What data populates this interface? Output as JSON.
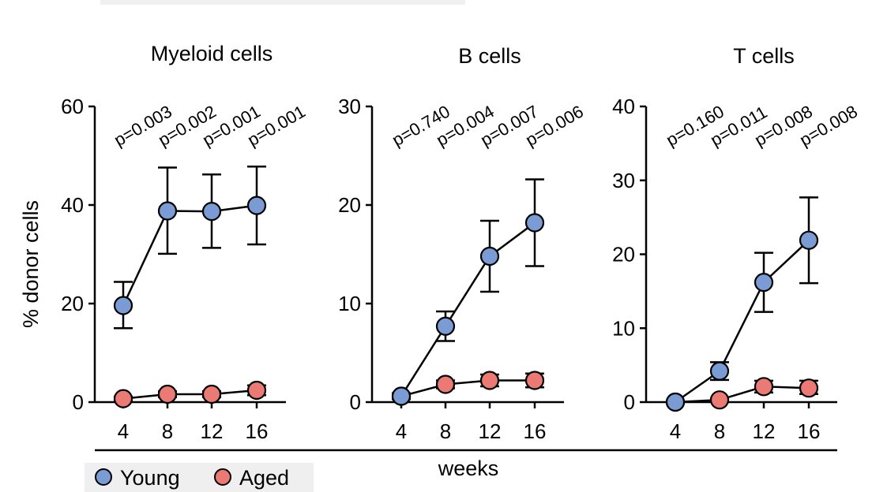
{
  "chart_data": {
    "type": "line",
    "xlabel": "weeks",
    "ylabel": "% donor cells",
    "legend": [
      {
        "name": "Young",
        "color": "#7b9bd4"
      },
      {
        "name": "Aged",
        "color": "#ec7a74"
      }
    ],
    "panels": [
      {
        "title": "Myeloid cells",
        "categories": [
          "4",
          "8",
          "12",
          "16"
        ],
        "ylim": [
          0,
          60
        ],
        "yticks": [
          0,
          20,
          40,
          60
        ],
        "pvalues": [
          "p=0.003",
          "p=0.002",
          "p=0.001",
          "p=0.001"
        ],
        "series": [
          {
            "name": "Young",
            "values": [
              19.6,
              38.8,
              38.7,
              39.9
            ],
            "err_low": [
              15.0,
              30.1,
              31.3,
              32.0
            ],
            "err_high": [
              24.4,
              47.6,
              46.2,
              47.8
            ]
          },
          {
            "name": "Aged",
            "values": [
              0.7,
              1.6,
              1.6,
              2.4
            ],
            "err_low": [
              0.3,
              1.0,
              1.0,
              1.4
            ],
            "err_high": [
              1.1,
              2.2,
              2.2,
              3.4
            ]
          }
        ]
      },
      {
        "title": "B cells",
        "categories": [
          "4",
          "8",
          "12",
          "16"
        ],
        "ylim": [
          0,
          30
        ],
        "yticks": [
          0,
          10,
          20,
          30
        ],
        "pvalues": [
          "p=0.740",
          "p=0.004",
          "p=0.007",
          "p=0.006"
        ],
        "series": [
          {
            "name": "Young",
            "values": [
              0.6,
              7.7,
              14.8,
              18.2
            ],
            "err_low": [
              0.3,
              6.2,
              11.2,
              13.8
            ],
            "err_high": [
              0.9,
              9.2,
              18.4,
              22.6
            ]
          },
          {
            "name": "Aged",
            "values": [
              0.6,
              1.8,
              2.2,
              2.2
            ],
            "err_low": [
              0.3,
              1.4,
              1.6,
              1.5
            ],
            "err_high": [
              0.9,
              2.2,
              2.8,
              2.9
            ]
          }
        ]
      },
      {
        "title": "T cells",
        "categories": [
          "4",
          "8",
          "12",
          "16"
        ],
        "ylim": [
          0,
          40
        ],
        "yticks": [
          0,
          10,
          20,
          30,
          40
        ],
        "pvalues": [
          "p=0.160",
          "p=0.011",
          "p=0.008",
          "p=0.008"
        ],
        "series": [
          {
            "name": "Young",
            "values": [
              0.0,
              4.2,
              16.2,
              21.9
            ],
            "err_low": [
              0.0,
              3.0,
              12.2,
              16.1
            ],
            "err_high": [
              0.0,
              5.4,
              20.2,
              27.7
            ]
          },
          {
            "name": "Aged",
            "values": [
              0.0,
              0.3,
              2.1,
              1.9
            ],
            "err_low": [
              0.0,
              0.1,
              1.3,
              1.1
            ],
            "err_high": [
              0.0,
              0.5,
              2.9,
              2.9
            ]
          }
        ]
      }
    ]
  }
}
